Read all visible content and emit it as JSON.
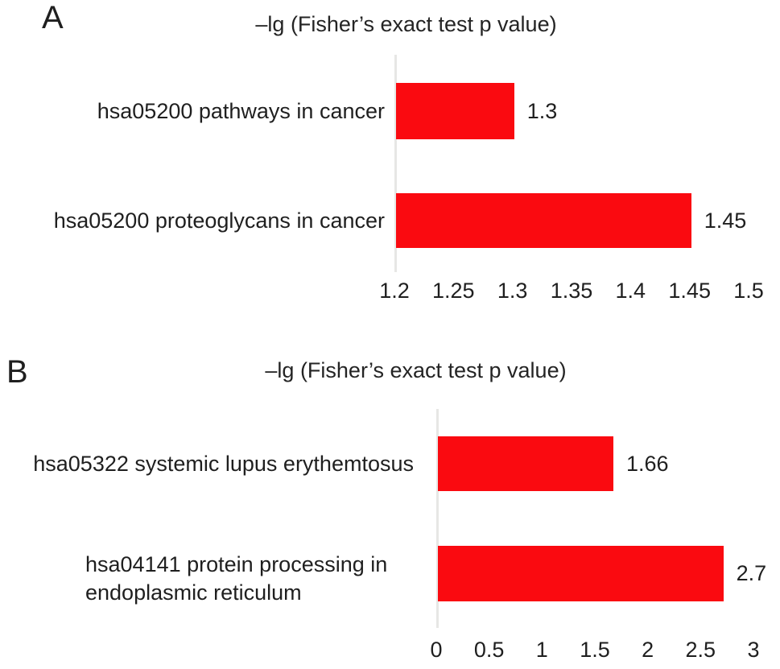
{
  "figure": {
    "background_color": "#ffffff",
    "text_color": "#1f1f1f",
    "bar_color": "#fa0a10",
    "axis_line_color": "#e7e7e5"
  },
  "chart_data": [
    {
      "type": "bar",
      "panel_label": "A",
      "title": "–lg (Fisher’s exact test p value)",
      "orientation": "horizontal",
      "categories": [
        "hsa05200 pathways in cancer",
        "hsa05200 proteoglycans in cancer"
      ],
      "category_lines": [
        [
          "hsa05200 pathways in cancer"
        ],
        [
          "hsa05200 proteoglycans in cancer"
        ]
      ],
      "values": [
        1.3,
        1.45
      ],
      "value_labels": [
        "1.3",
        "1.45"
      ],
      "xlim": [
        1.2,
        1.5
      ],
      "x_ticks": [
        "1.2",
        "1.25",
        "1.3",
        "1.35",
        "1.4",
        "1.45",
        "1.5"
      ],
      "grid": false,
      "legend": "none",
      "bar_color": "#fa0a10"
    },
    {
      "type": "bar",
      "panel_label": "B",
      "title": "–lg (Fisher’s exact test p value)",
      "orientation": "horizontal",
      "categories": [
        "hsa05322 systemic lupus erythemtosus",
        "hsa04141 protein processing in endoplasmic reticulum"
      ],
      "category_lines": [
        [
          "hsa05322 systemic lupus erythemtosus"
        ],
        [
          "hsa04141 protein processing in",
          "endoplasmic reticulum"
        ]
      ],
      "values": [
        1.66,
        2.7
      ],
      "value_labels": [
        "1.66",
        "2.7"
      ],
      "xlim": [
        0,
        3
      ],
      "x_ticks": [
        "0",
        "0.5",
        "1",
        "1.5",
        "2",
        "2.5",
        "3"
      ],
      "grid": false,
      "legend": "none",
      "bar_color": "#fa0a10"
    }
  ]
}
